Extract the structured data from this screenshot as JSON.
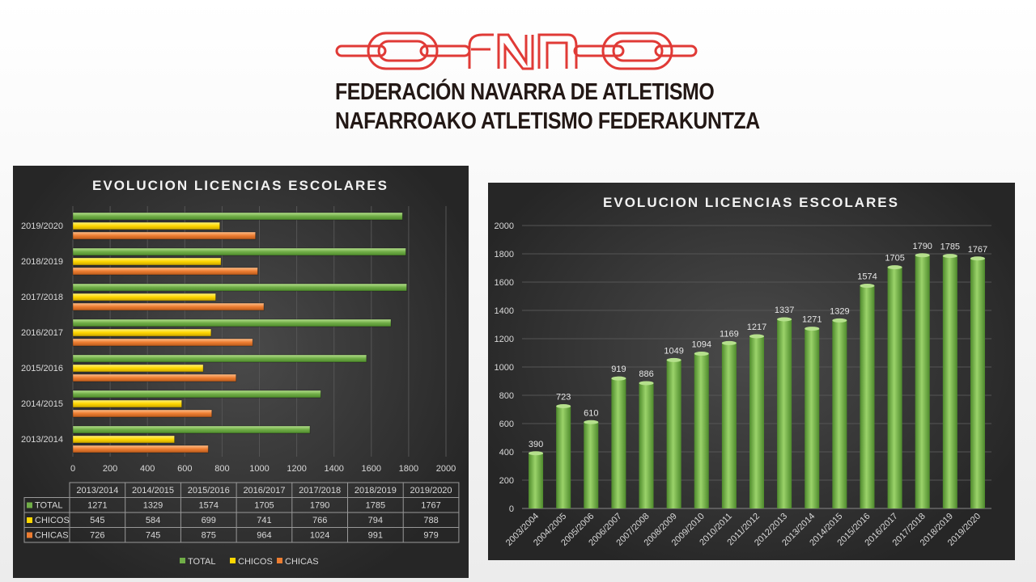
{
  "logo": {
    "mark": "FNA",
    "line1": "FEDERACIÓN NAVARRA DE ATLETISMO",
    "line2": "NAFARROAKO ATLETISMO FEDERAKUNTZA",
    "color": "#e03a36"
  },
  "chart_data": [
    {
      "type": "bar",
      "orientation": "horizontal",
      "title": "EVOLUCION  LICENCIAS  ESCOLARES",
      "categories": [
        "2013/2014",
        "2014/2015",
        "2015/2016",
        "2016/2017",
        "2017/2018",
        "2018/2019",
        "2019/2020"
      ],
      "series": [
        {
          "name": "TOTAL",
          "color": "#70ad47",
          "values": [
            1271,
            1329,
            1574,
            1705,
            1790,
            1785,
            1767
          ]
        },
        {
          "name": "CHICOS",
          "color": "#ffd700",
          "values": [
            545,
            584,
            699,
            741,
            766,
            794,
            788
          ]
        },
        {
          "name": "CHICAS",
          "color": "#ed7d31",
          "values": [
            726,
            745,
            875,
            964,
            1024,
            991,
            979
          ]
        }
      ],
      "xlim": [
        0,
        2000
      ],
      "xticks": [
        "0",
        "200",
        "400",
        "600",
        "800",
        "1000",
        "1200",
        "1400",
        "1600",
        "1800",
        "2000"
      ],
      "grid": true,
      "data_table": true,
      "legend": "bottom"
    },
    {
      "type": "bar",
      "title": "EVOLUCION  LICENCIAS  ESCOLARES",
      "categories": [
        "2003/2004",
        "2004/2005",
        "2005/2006",
        "2006/2007",
        "2007/2008",
        "2008/2009",
        "2009/2010",
        "2010/2011",
        "2011/2012",
        "2012/2013",
        "2013/2014",
        "2014/2015",
        "2015/2016",
        "2016/2017",
        "2017/2018",
        "2018/2019",
        "2019/2020"
      ],
      "values": [
        390,
        723,
        610,
        919,
        886,
        1049,
        1094,
        1169,
        1217,
        1337,
        1271,
        1329,
        1574,
        1705,
        1790,
        1785,
        1767
      ],
      "color": "#70ad47",
      "ylim": [
        0,
        2000
      ],
      "yticks": [
        "0",
        "200",
        "400",
        "600",
        "800",
        "1000",
        "1200",
        "1400",
        "1600",
        "1800",
        "2000"
      ],
      "grid": true,
      "data_labels": true
    }
  ]
}
